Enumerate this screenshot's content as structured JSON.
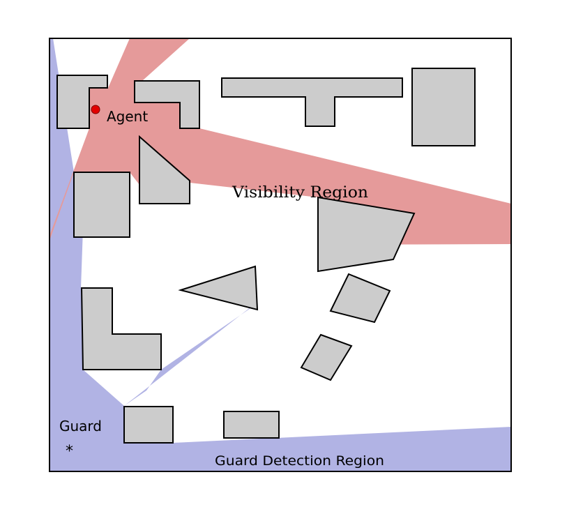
{
  "labels": {
    "agent": "Agent",
    "visibility_region": "Visibility Region",
    "guard": "Guard",
    "guard_detection_region": "Guard Detection Region"
  },
  "colors": {
    "obstacle_fill": "#cccccc",
    "visibility_fill": "#e59a9a",
    "detection_fill": "#b1b3e4",
    "agent_marker": "#e30000",
    "outline": "#000000"
  },
  "markers": {
    "agent_symbol": "●",
    "guard_symbol": "*"
  }
}
